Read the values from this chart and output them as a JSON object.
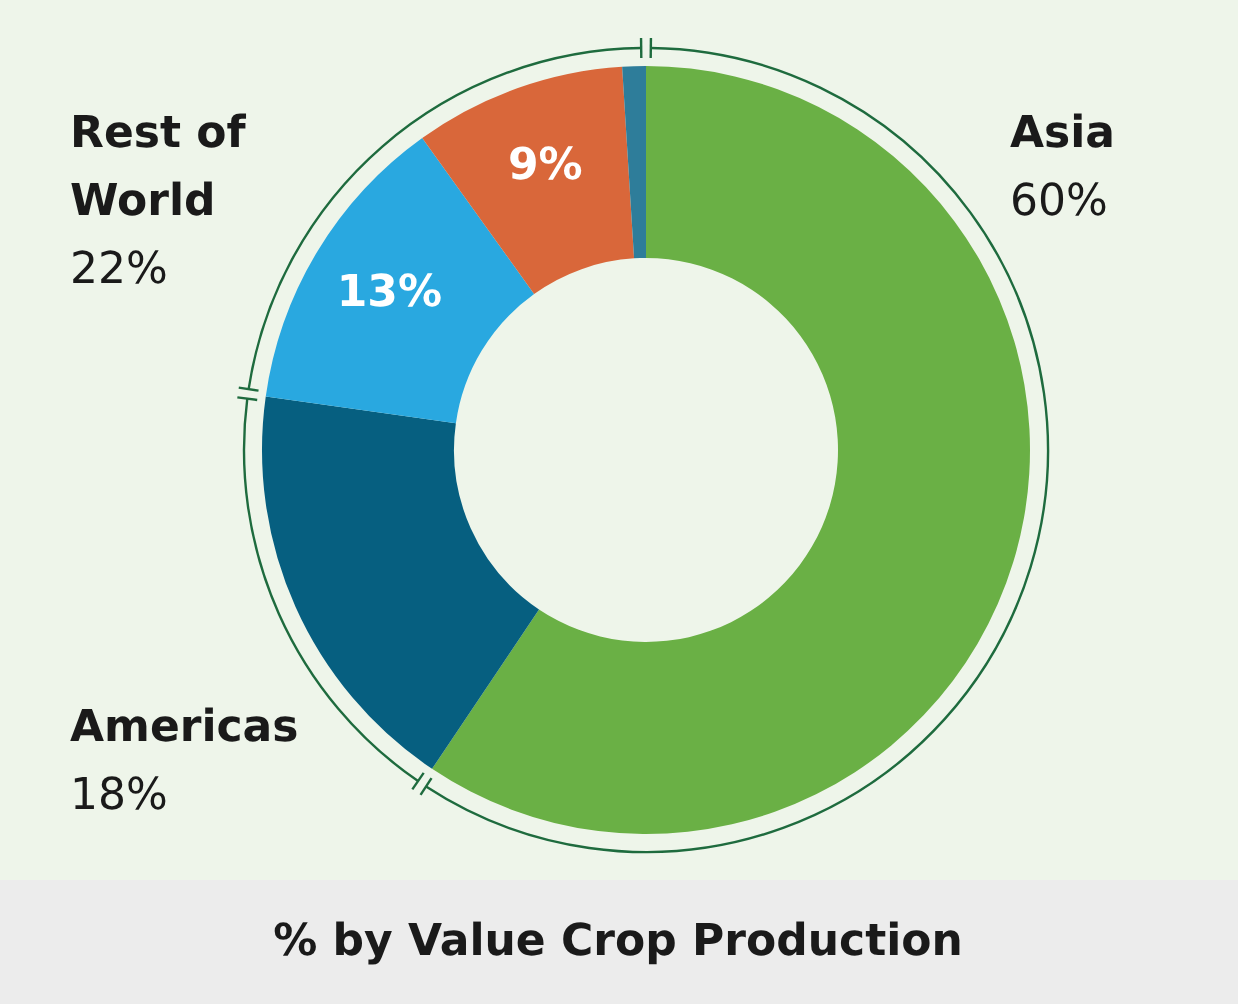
{
  "chart_data": {
    "type": "donut",
    "title": "% by Value Crop Production",
    "categories": [
      "Asia",
      "Americas",
      null,
      null,
      null
    ],
    "values": [
      60,
      18,
      13,
      9,
      1
    ],
    "colors": [
      "#6ab045",
      "#065f80",
      "#29a8e0",
      "#d9673a",
      "#2e7d9a"
    ],
    "value_labels": [
      "60%",
      "18%",
      "13%",
      "9%",
      null
    ],
    "annotations": [
      "Rest of World",
      "22%"
    ],
    "legend": false
  }
}
